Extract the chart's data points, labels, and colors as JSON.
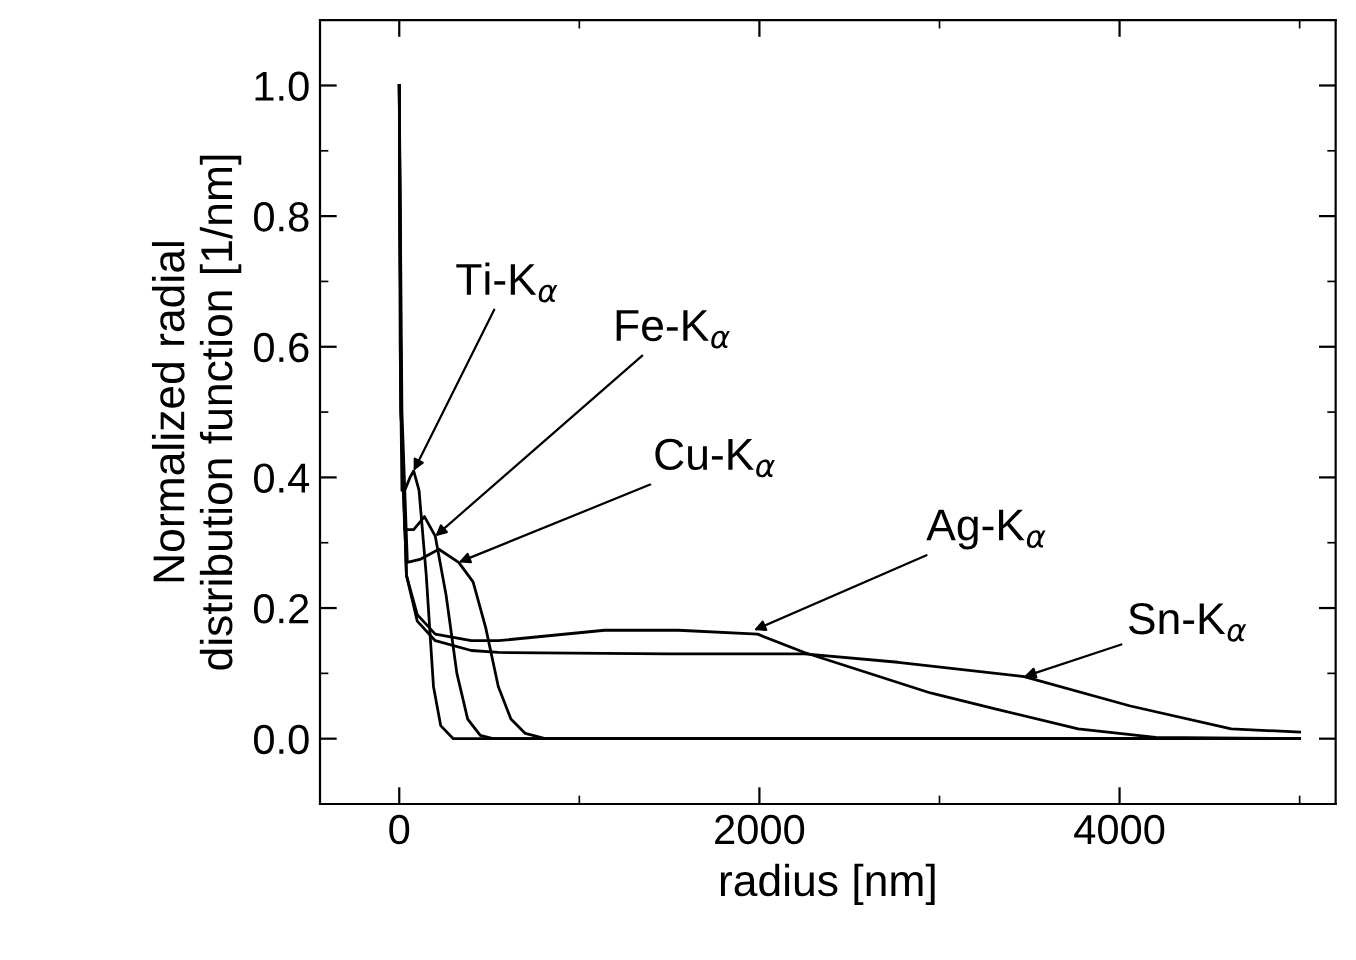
{
  "chart_data": {
    "type": "line",
    "xlabel": "radius [nm]",
    "ylabel": "Normalized radial\ndistribution function [1/nm]",
    "xlim": [
      -440,
      5200
    ],
    "xticks": [
      0,
      2000,
      4000
    ],
    "ylim": [
      -0.1,
      1.1
    ],
    "yticks": [
      {
        "value": 0,
        "label": "0.0"
      },
      {
        "value": 0.2,
        "label": "0.2"
      },
      {
        "value": 0.4,
        "label": "0.4"
      },
      {
        "value": 0.6,
        "label": "0.6"
      },
      {
        "value": 0.8,
        "label": "0.8"
      },
      {
        "value": 1.0,
        "label": "1.0"
      }
    ],
    "grid": false,
    "legend": false,
    "marker": "none",
    "line_style": "solid",
    "series": [
      {
        "color": "#000000",
        "x": [
          0,
          5,
          15,
          30,
          60,
          80,
          110,
          150,
          190,
          230,
          300,
          5000
        ],
        "values": [
          1.0,
          0.6,
          0.38,
          0.38,
          0.4,
          0.41,
          0.38,
          0.25,
          0.08,
          0.02,
          0,
          0
        ]
      },
      {
        "color": "#000000",
        "x": [
          0,
          10,
          30,
          80,
          140,
          200,
          260,
          320,
          380,
          450,
          520,
          5000
        ],
        "values": [
          1.0,
          0.5,
          0.32,
          0.32,
          0.34,
          0.31,
          0.22,
          0.1,
          0.03,
          0.005,
          0,
          0
        ]
      },
      {
        "color": "#000000",
        "x": [
          0,
          15,
          45,
          120,
          220,
          330,
          410,
          480,
          550,
          620,
          700,
          810,
          5000
        ],
        "values": [
          1.0,
          0.5,
          0.27,
          0.275,
          0.29,
          0.27,
          0.24,
          0.17,
          0.08,
          0.03,
          0.008,
          0,
          0
        ]
      },
      {
        "color": "#000000",
        "x": [
          0,
          10,
          40,
          100,
          200,
          400,
          550,
          1140,
          1550,
          1990,
          2250,
          2950,
          3320,
          3770,
          4200,
          5000
        ],
        "values": [
          1.0,
          0.5,
          0.25,
          0.19,
          0.16,
          0.15,
          0.15,
          0.166,
          0.166,
          0.16,
          0.132,
          0.07,
          0.045,
          0.015,
          0.002,
          0
        ]
      },
      {
        "color": "#000000",
        "x": [
          0,
          10,
          40,
          100,
          200,
          400,
          550,
          1500,
          2250,
          2770,
          3470,
          4060,
          4620,
          5000
        ],
        "values": [
          1.0,
          0.5,
          0.25,
          0.18,
          0.15,
          0.135,
          0.132,
          0.13,
          0.13,
          0.117,
          0.095,
          0.05,
          0.015,
          0.01
        ]
      }
    ],
    "annotations": [
      {
        "text": "Ti-K$_{α}$",
        "x": 80,
        "y": 0.41
      },
      {
        "text": "Fe-K$_{α}$",
        "x": 200,
        "y": 0.31
      },
      {
        "text": "Cu-K$_{α}$",
        "x": 330,
        "y": 0.27
      },
      {
        "text": "Ag-K$_{α}$",
        "x": 1970,
        "y": 0.166
      },
      {
        "text": "Sn-K$_{α}$",
        "x": 3470,
        "y": 0.095
      }
    ]
  }
}
